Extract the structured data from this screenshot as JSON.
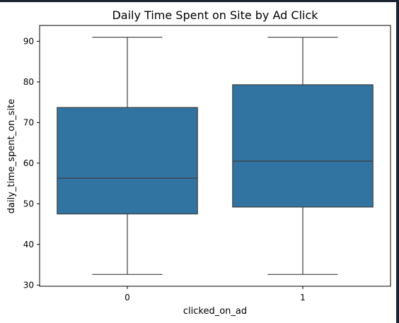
{
  "chart_data": {
    "type": "box",
    "title": "Daily Time Spent on Site by Ad Click",
    "xlabel": "clicked_on_ad",
    "ylabel": "daily_time_spent_on_site",
    "categories": [
      "0",
      "1"
    ],
    "boxes": [
      {
        "category": "0",
        "min": 32.6,
        "q1": 47.5,
        "median": 56.3,
        "q3": 73.7,
        "max": 91.0
      },
      {
        "category": "1",
        "min": 32.6,
        "q1": 49.2,
        "median": 60.5,
        "q3": 79.3,
        "max": 91.0
      }
    ],
    "ylim": [
      29.7,
      93.9
    ],
    "yticks": [
      30,
      40,
      50,
      60,
      70,
      80,
      90
    ],
    "grid": false,
    "legend": "none"
  },
  "colors": {
    "box_fill": "#3274a1",
    "box_line": "#3f3f3f",
    "axis": "#000000"
  }
}
